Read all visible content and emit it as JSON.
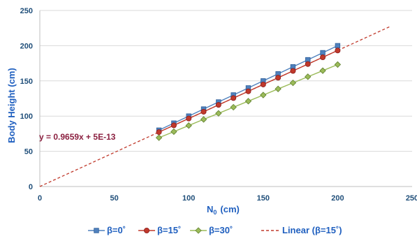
{
  "chart_data": {
    "type": "line",
    "xlabel_main": "N",
    "xlabel_sub": "0",
    "xlabel_unit": "(cm)",
    "ylabel": "Body Height (cm)",
    "xlim": [
      0,
      250
    ],
    "ylim": [
      0,
      250
    ],
    "xticks": [
      "0",
      "50",
      "100",
      "150",
      "200",
      "250"
    ],
    "yticks": [
      "0",
      "50",
      "100",
      "150",
      "200",
      "250"
    ],
    "grid": "horizontal",
    "legend_position": "bottom",
    "annotation": "y = 0.9659x + 5E-13",
    "x": [
      80,
      90,
      100,
      110,
      120,
      130,
      140,
      150,
      160,
      170,
      180,
      190,
      200
    ],
    "series": [
      {
        "name": "β=0˚",
        "color": "#4f81bd",
        "marker": "square",
        "values": [
          80,
          90,
          100,
          110,
          120,
          130,
          140,
          150,
          160,
          170,
          180,
          190,
          200
        ]
      },
      {
        "name": "β=15˚",
        "color": "#c0392b",
        "marker": "circle",
        "values": [
          77.3,
          86.9,
          96.6,
          106.2,
          115.9,
          125.6,
          135.2,
          144.9,
          154.5,
          164.2,
          173.9,
          183.5,
          193.2
        ]
      },
      {
        "name": "β=30˚",
        "color": "#9bbb59",
        "marker": "diamond",
        "values": [
          69.3,
          77.9,
          86.6,
          95.3,
          103.9,
          112.6,
          121.2,
          129.9,
          138.6,
          147.2,
          155.9,
          164.5,
          173.2
        ]
      }
    ],
    "trendline": {
      "name": "Linear (β=15˚)",
      "color": "#c0392b",
      "slope": 0.9659,
      "x_range": [
        0,
        235
      ]
    }
  }
}
